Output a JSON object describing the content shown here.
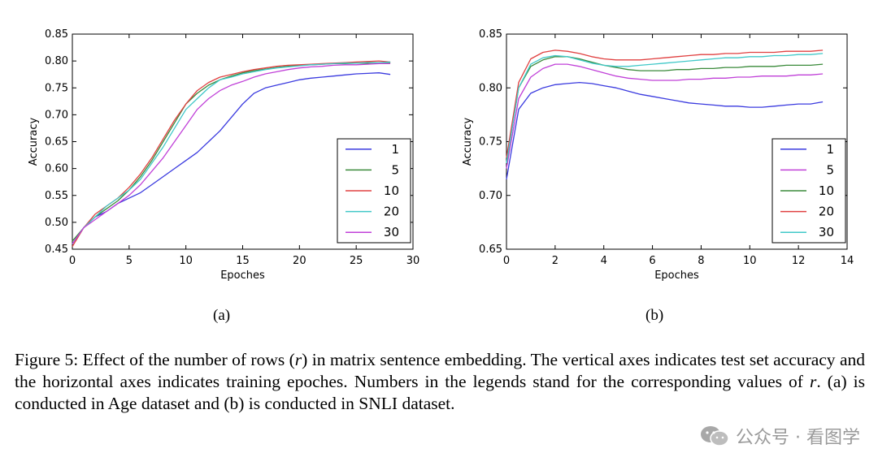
{
  "chart_data": [
    {
      "type": "line",
      "sub_caption": "(a)",
      "xlabel": "Epoches",
      "ylabel": "Accuracy",
      "xlim": [
        0,
        30
      ],
      "ylim": [
        0.45,
        0.85
      ],
      "xticks": [
        0,
        5,
        10,
        15,
        20,
        25,
        30
      ],
      "yticks": [
        0.45,
        0.5,
        0.55,
        0.6,
        0.65,
        0.7,
        0.75,
        0.8,
        0.85
      ],
      "grid": false,
      "legend_position": "center-right",
      "series": [
        {
          "name": "1",
          "color": "#3a3adf",
          "x": [
            0,
            1,
            2,
            3,
            4,
            5,
            6,
            7,
            8,
            9,
            10,
            11,
            12,
            13,
            14,
            15,
            16,
            17,
            18,
            19,
            20,
            21,
            22,
            23,
            24,
            25,
            26,
            27,
            28
          ],
          "y": [
            0.46,
            0.49,
            0.51,
            0.52,
            0.535,
            0.545,
            0.555,
            0.57,
            0.585,
            0.6,
            0.615,
            0.63,
            0.65,
            0.67,
            0.695,
            0.72,
            0.74,
            0.75,
            0.755,
            0.76,
            0.765,
            0.768,
            0.77,
            0.772,
            0.774,
            0.776,
            0.777,
            0.778,
            0.775
          ]
        },
        {
          "name": "5",
          "color": "#3a8a3a",
          "x": [
            0,
            1,
            2,
            3,
            4,
            5,
            6,
            7,
            8,
            9,
            10,
            11,
            12,
            13,
            14,
            15,
            16,
            17,
            18,
            19,
            20,
            21,
            22,
            23,
            24,
            25,
            26,
            27,
            28
          ],
          "y": [
            0.465,
            0.49,
            0.51,
            0.525,
            0.54,
            0.56,
            0.585,
            0.615,
            0.65,
            0.685,
            0.72,
            0.74,
            0.755,
            0.765,
            0.772,
            0.778,
            0.782,
            0.785,
            0.788,
            0.79,
            0.792,
            0.793,
            0.794,
            0.795,
            0.795,
            0.796,
            0.796,
            0.797,
            0.797
          ]
        },
        {
          "name": "10",
          "color": "#e04040",
          "x": [
            0,
            1,
            2,
            3,
            4,
            5,
            6,
            7,
            8,
            9,
            10,
            11,
            12,
            13,
            14,
            15,
            16,
            17,
            18,
            19,
            20,
            21,
            22,
            23,
            24,
            25,
            26,
            27,
            28
          ],
          "y": [
            0.455,
            0.49,
            0.515,
            0.53,
            0.545,
            0.565,
            0.59,
            0.62,
            0.655,
            0.69,
            0.72,
            0.745,
            0.76,
            0.77,
            0.775,
            0.78,
            0.784,
            0.787,
            0.79,
            0.792,
            0.793,
            0.794,
            0.795,
            0.796,
            0.797,
            0.798,
            0.799,
            0.8,
            0.798
          ]
        },
        {
          "name": "20",
          "color": "#40c8c8",
          "x": [
            0,
            1,
            2,
            3,
            4,
            5,
            6,
            7,
            8,
            9,
            10,
            11,
            12,
            13,
            14,
            15,
            16,
            17,
            18,
            19,
            20,
            21,
            22,
            23,
            24,
            25,
            26,
            27,
            28
          ],
          "y": [
            0.46,
            0.49,
            0.51,
            0.53,
            0.545,
            0.56,
            0.58,
            0.61,
            0.64,
            0.675,
            0.71,
            0.73,
            0.75,
            0.765,
            0.77,
            0.776,
            0.78,
            0.784,
            0.787,
            0.789,
            0.791,
            0.793,
            0.794,
            0.795,
            0.796,
            0.796,
            0.797,
            0.797,
            0.798
          ]
        },
        {
          "name": "30",
          "color": "#c040d8",
          "x": [
            0,
            1,
            2,
            3,
            4,
            5,
            6,
            7,
            8,
            9,
            10,
            11,
            12,
            13,
            14,
            15,
            16,
            17,
            18,
            19,
            20,
            21,
            22,
            23,
            24,
            25,
            26,
            27,
            28
          ],
          "y": [
            0.46,
            0.49,
            0.505,
            0.52,
            0.535,
            0.55,
            0.57,
            0.595,
            0.62,
            0.65,
            0.68,
            0.71,
            0.73,
            0.745,
            0.755,
            0.762,
            0.77,
            0.776,
            0.78,
            0.784,
            0.787,
            0.789,
            0.79,
            0.792,
            0.793,
            0.793,
            0.794,
            0.795,
            0.795
          ]
        }
      ]
    },
    {
      "type": "line",
      "sub_caption": "(b)",
      "xlabel": "Epoches",
      "ylabel": "Accuracy",
      "xlim": [
        0,
        14
      ],
      "ylim": [
        0.65,
        0.85
      ],
      "xticks": [
        0,
        2,
        4,
        6,
        8,
        10,
        12,
        14
      ],
      "yticks": [
        0.65,
        0.7,
        0.75,
        0.8,
        0.85
      ],
      "grid": false,
      "legend_position": "lower-right",
      "series": [
        {
          "name": "1",
          "color": "#3a3adf",
          "x": [
            0,
            0.5,
            1,
            1.5,
            2,
            2.5,
            3,
            3.5,
            4,
            4.5,
            5,
            5.5,
            6,
            6.5,
            7,
            7.5,
            8,
            8.5,
            9,
            9.5,
            10,
            10.5,
            11,
            11.5,
            12,
            12.5,
            13
          ],
          "y": [
            0.715,
            0.78,
            0.795,
            0.8,
            0.803,
            0.804,
            0.805,
            0.804,
            0.802,
            0.8,
            0.797,
            0.794,
            0.792,
            0.79,
            0.788,
            0.786,
            0.785,
            0.784,
            0.783,
            0.783,
            0.782,
            0.782,
            0.783,
            0.784,
            0.785,
            0.785,
            0.787
          ]
        },
        {
          "name": "5",
          "color": "#c040d8",
          "x": [
            0,
            0.5,
            1,
            1.5,
            2,
            2.5,
            3,
            3.5,
            4,
            4.5,
            5,
            5.5,
            6,
            6.5,
            7,
            7.5,
            8,
            8.5,
            9,
            9.5,
            10,
            10.5,
            11,
            11.5,
            12,
            12.5,
            13
          ],
          "y": [
            0.725,
            0.79,
            0.81,
            0.818,
            0.822,
            0.822,
            0.82,
            0.817,
            0.814,
            0.811,
            0.809,
            0.808,
            0.807,
            0.807,
            0.807,
            0.808,
            0.808,
            0.809,
            0.809,
            0.81,
            0.81,
            0.811,
            0.811,
            0.811,
            0.812,
            0.812,
            0.813
          ]
        },
        {
          "name": "10",
          "color": "#3a8a3a",
          "x": [
            0,
            0.5,
            1,
            1.5,
            2,
            2.5,
            3,
            3.5,
            4,
            4.5,
            5,
            5.5,
            6,
            6.5,
            7,
            7.5,
            8,
            8.5,
            9,
            9.5,
            10,
            10.5,
            11,
            11.5,
            12,
            12.5,
            13
          ],
          "y": [
            0.73,
            0.8,
            0.82,
            0.826,
            0.829,
            0.829,
            0.827,
            0.824,
            0.821,
            0.819,
            0.817,
            0.816,
            0.816,
            0.816,
            0.817,
            0.817,
            0.818,
            0.818,
            0.819,
            0.819,
            0.82,
            0.82,
            0.82,
            0.821,
            0.821,
            0.821,
            0.822
          ]
        },
        {
          "name": "20",
          "color": "#e04040",
          "x": [
            0,
            0.5,
            1,
            1.5,
            2,
            2.5,
            3,
            3.5,
            4,
            4.5,
            5,
            5.5,
            6,
            6.5,
            7,
            7.5,
            8,
            8.5,
            9,
            9.5,
            10,
            10.5,
            11,
            11.5,
            12,
            12.5,
            13
          ],
          "y": [
            0.735,
            0.805,
            0.827,
            0.833,
            0.835,
            0.834,
            0.832,
            0.829,
            0.827,
            0.826,
            0.826,
            0.826,
            0.827,
            0.828,
            0.829,
            0.83,
            0.831,
            0.831,
            0.832,
            0.832,
            0.833,
            0.833,
            0.833,
            0.834,
            0.834,
            0.834,
            0.835
          ]
        },
        {
          "name": "30",
          "color": "#40c8c8",
          "x": [
            0,
            0.5,
            1,
            1.5,
            2,
            2.5,
            3,
            3.5,
            4,
            4.5,
            5,
            5.5,
            6,
            6.5,
            7,
            7.5,
            8,
            8.5,
            9,
            9.5,
            10,
            10.5,
            11,
            11.5,
            12,
            12.5,
            13
          ],
          "y": [
            0.73,
            0.8,
            0.822,
            0.828,
            0.83,
            0.829,
            0.826,
            0.823,
            0.821,
            0.82,
            0.82,
            0.821,
            0.822,
            0.823,
            0.824,
            0.825,
            0.826,
            0.827,
            0.828,
            0.828,
            0.829,
            0.829,
            0.83,
            0.83,
            0.831,
            0.831,
            0.832
          ]
        }
      ]
    }
  ],
  "caption": {
    "part1": "Figure 5: Effect of the number of rows (",
    "var1": "r",
    "part2": ") in matrix sentence embedding. The vertical axes indicates test set accuracy and the horizontal axes indicates training epoches. Numbers in the legends stand for the corresponding values of ",
    "var2": "r",
    "part3": ".  (a) is conducted in Age dataset and (b) is conducted in SNLI dataset."
  },
  "watermark": {
    "icon": "wechat-icon",
    "text": "公众号 · 看图学"
  }
}
